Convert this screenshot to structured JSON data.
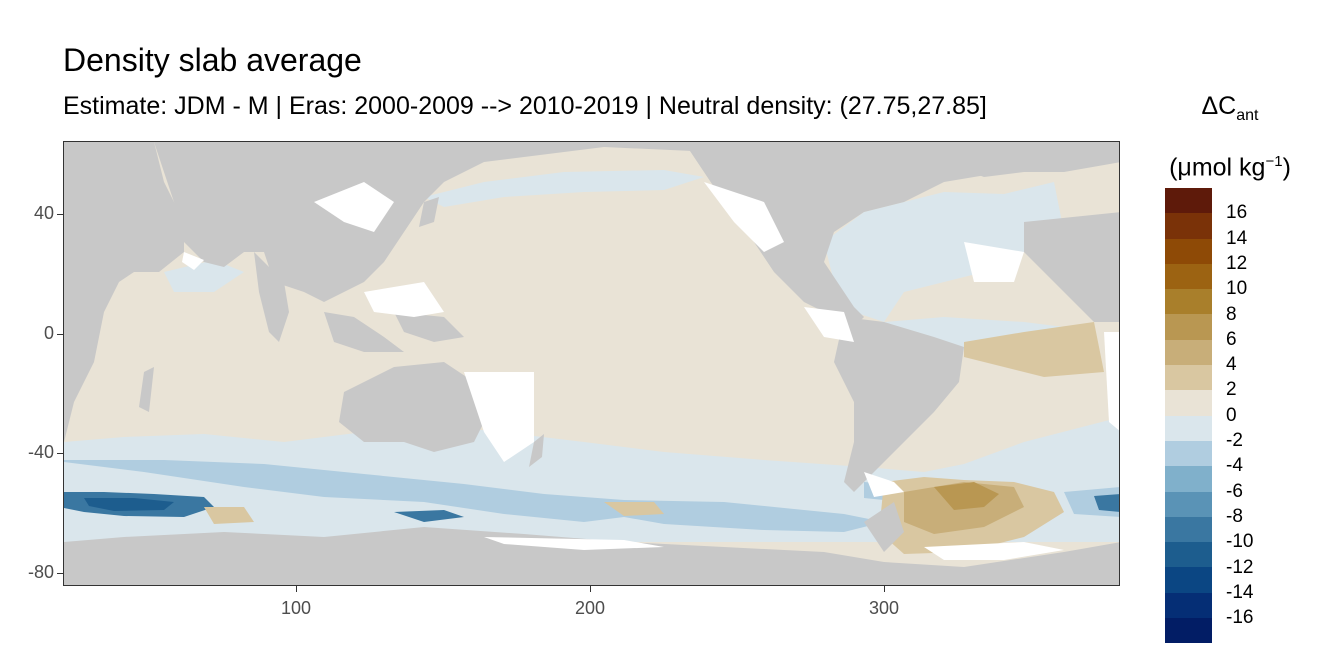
{
  "title": "Density slab average",
  "subtitle": "Estimate: JDM - M | Eras: 2000-2009 --> 2010-2019 | Neutral density: (27.75,27.85]",
  "legend": {
    "title_prefix": "ΔC",
    "title_sub": "ant",
    "unit_prefix": "(μmol kg",
    "unit_sup": "−1",
    "unit_suffix": ")",
    "labels": [
      "16",
      "14",
      "12",
      "10",
      "8",
      "6",
      "4",
      "2",
      "0",
      "-2",
      "-4",
      "-6",
      "-8",
      "-10",
      "-12",
      "-14",
      "-16"
    ],
    "colors": [
      "#5e1a0a",
      "#7a3208",
      "#8e4a06",
      "#9c6312",
      "#a97f2b",
      "#b99752",
      "#c8ae79",
      "#d9c7a1",
      "#e9e3d6",
      "#dae6ec",
      "#b0cde0",
      "#80b0cb",
      "#5a93b6",
      "#3a77a1",
      "#1d5d8e",
      "#0b4683",
      "#052e75",
      "#021d65"
    ]
  },
  "axes": {
    "y_ticks": [
      "40",
      "0",
      "-40",
      "-80"
    ],
    "x_ticks": [
      "100",
      "200",
      "300"
    ]
  },
  "map": {
    "land_color": "#c8c8c8",
    "ocean_base_color": "#e9e3d6",
    "light_blue": "#dae6ec",
    "mid_blue": "#b0cde0",
    "deep_blue": "#3a77a1",
    "darkest_blue": "#1d5d8e",
    "light_brown": "#d9c7a1",
    "mid_brown": "#c8ae79",
    "dark_brown": "#b99752"
  }
}
